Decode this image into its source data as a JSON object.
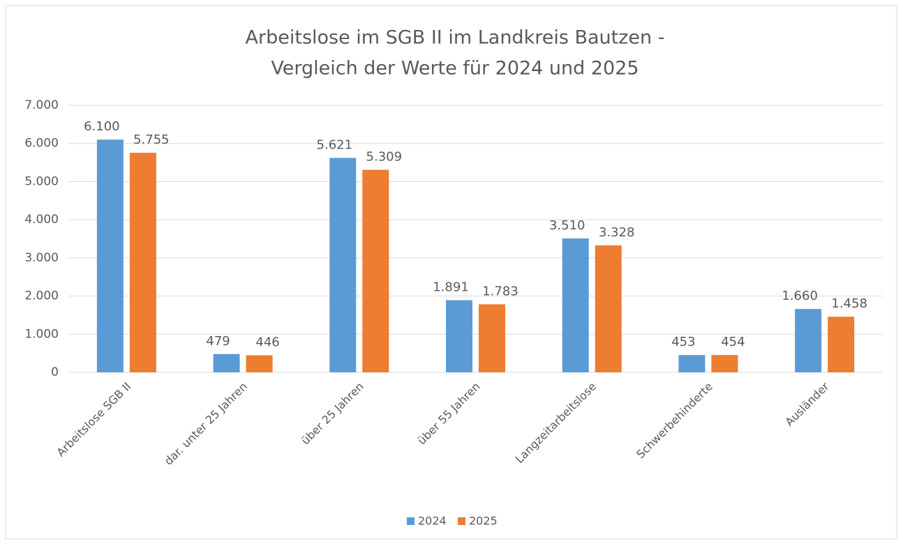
{
  "chart_data": {
    "type": "bar",
    "title": [
      "Arbeitslose im SGB II im Landkreis Bautzen -",
      "Vergleich der Werte für 2024 und 2025"
    ],
    "categories": [
      "Arbeitslose SGB II",
      "dar. unter 25 Jahren",
      "über 25 Jahren",
      "über 55 Jahren",
      "Langzeitarbeitslose",
      "Schwerbehinderte",
      "Ausländer"
    ],
    "series": [
      {
        "name": "2024",
        "color": "#5b9bd5",
        "values": [
          6100,
          479,
          5621,
          1891,
          3510,
          453,
          1660
        ],
        "value_labels": [
          "6.100",
          "479",
          "5.621",
          "1.891",
          "3.510",
          "453",
          "1.660"
        ]
      },
      {
        "name": "2025",
        "color": "#ed7d31",
        "values": [
          5755,
          446,
          5309,
          1783,
          3328,
          454,
          1458
        ],
        "value_labels": [
          "5.755",
          "446",
          "5.309",
          "1.783",
          "3.328",
          "454",
          "1.458"
        ]
      }
    ],
    "ylim": [
      0,
      7000
    ],
    "yticks": [
      0,
      {
        "value": 1000,
        "label": "1.000"
      },
      {
        "value": 2000,
        "label": "2.000"
      },
      {
        "value": 3000,
        "label": "3.000"
      },
      {
        "value": 4000,
        "label": "4.000"
      },
      {
        "value": 5000,
        "label": "5.000"
      },
      {
        "value": 6000,
        "label": "6.000"
      },
      {
        "value": 7000,
        "label": "7.000"
      }
    ],
    "grid": true,
    "legend": "bottom"
  }
}
